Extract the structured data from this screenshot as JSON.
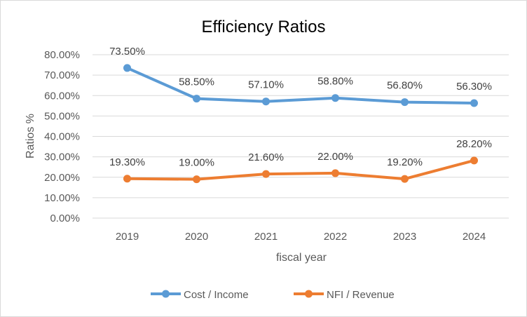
{
  "chart_data": {
    "type": "line",
    "title": "Efficiency Ratios",
    "xlabel": "fiscal year",
    "ylabel": "Ratios %",
    "categories": [
      "2019",
      "2020",
      "2021",
      "2022",
      "2023",
      "2024"
    ],
    "ylim": [
      0,
      80
    ],
    "yticks": [
      "0.00%",
      "10.00%",
      "20.00%",
      "30.00%",
      "40.00%",
      "50.00%",
      "60.00%",
      "70.00%",
      "80.00%"
    ],
    "grid": true,
    "legend": "bottom",
    "series": [
      {
        "name": "Cost / Income",
        "color": "#5B9BD5",
        "values": [
          73.5,
          58.5,
          57.1,
          58.8,
          56.8,
          56.3
        ],
        "labels": [
          "73.50%",
          "58.50%",
          "57.10%",
          "58.80%",
          "56.80%",
          "56.30%"
        ]
      },
      {
        "name": "NFI / Revenue",
        "color": "#ED7D31",
        "values": [
          19.3,
          19.0,
          21.6,
          22.0,
          19.2,
          28.2
        ],
        "labels": [
          "19.30%",
          "19.00%",
          "21.60%",
          "22.00%",
          "19.20%",
          "28.20%"
        ]
      }
    ]
  }
}
